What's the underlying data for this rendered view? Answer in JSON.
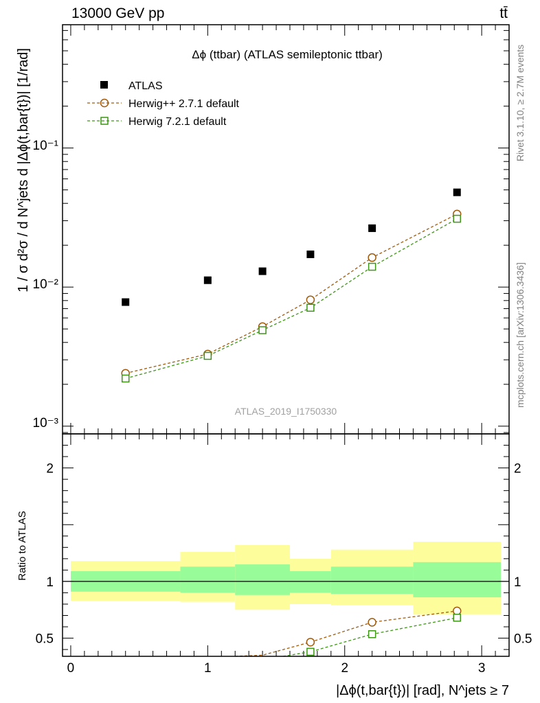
{
  "header": {
    "energy_label": "13000 GeV pp",
    "process_label": "tt̄"
  },
  "side_labels": {
    "rivet": "Rivet 3.1.10, ≥ 2.7M events",
    "mcplots": "mcplots.cern.ch [arXiv:1306.3436]"
  },
  "chart_data": [
    {
      "type": "scatter",
      "title": "Δϕ (ttbar) (ATLAS semileptonic ttbar)",
      "ylabel": "1 / σ d²σ / d N^jets d |Δϕ(t,bar{t})| [1/rad]",
      "yscale": "log",
      "ylim": [
        0.00088,
        0.77
      ],
      "y_ticks": [
        {
          "value": 0.001,
          "label": "10⁻³"
        },
        {
          "value": 0.01,
          "label": "10⁻²"
        },
        {
          "value": 0.1,
          "label": "10⁻¹"
        }
      ],
      "watermark": "ATLAS_2019_I1750330",
      "legend_position": "top-left",
      "x": [
        0.4,
        1.0,
        1.4,
        1.75,
        2.2,
        2.82
      ],
      "series": [
        {
          "name": "ATLAS",
          "marker": "filled-square",
          "color": "#000000",
          "values": [
            0.0078,
            0.0112,
            0.013,
            0.0172,
            0.0265,
            0.048
          ]
        },
        {
          "name": "Herwig++ 2.7.1 default",
          "marker": "open-circle",
          "color": "#a05a0a",
          "line": "dashed",
          "values": [
            0.0024,
            0.0033,
            0.0052,
            0.0081,
            0.0163,
            0.0335
          ]
        },
        {
          "name": "Herwig 7.2.1 default",
          "marker": "open-square",
          "color": "#3c9614",
          "line": "dashed",
          "values": [
            0.0022,
            0.0032,
            0.0049,
            0.0071,
            0.014,
            0.031
          ]
        }
      ]
    },
    {
      "type": "scatter",
      "xlabel": "|Δϕ(t,bar{t})| [rad], N^jets ≥ 7",
      "ylabel": "Ratio to ATLAS",
      "xlim": [
        -0.06,
        3.2
      ],
      "ylim": [
        0.34,
        2.3
      ],
      "x_ticks": [
        0,
        1,
        2,
        3
      ],
      "y_ticks": [
        0.5,
        1,
        2
      ],
      "reference": 1,
      "bands": [
        {
          "x0": 0.0,
          "x1": 0.8,
          "inner": [
            0.91,
            1.09
          ],
          "outer": [
            0.83,
            1.18
          ]
        },
        {
          "x0": 0.8,
          "x1": 1.2,
          "inner": [
            0.9,
            1.13
          ],
          "outer": [
            0.82,
            1.26
          ]
        },
        {
          "x0": 1.2,
          "x1": 1.6,
          "inner": [
            0.88,
            1.15
          ],
          "outer": [
            0.75,
            1.32
          ]
        },
        {
          "x0": 1.6,
          "x1": 1.9,
          "inner": [
            0.9,
            1.09
          ],
          "outer": [
            0.8,
            1.2
          ]
        },
        {
          "x0": 1.9,
          "x1": 2.5,
          "inner": [
            0.89,
            1.13
          ],
          "outer": [
            0.79,
            1.28
          ]
        },
        {
          "x0": 2.5,
          "x1": 3.14,
          "inner": [
            0.86,
            1.17
          ],
          "outer": [
            0.71,
            1.35
          ]
        }
      ],
      "series": [
        {
          "name": "Herwig++ 2.7.1 default",
          "color": "#a05a0a",
          "marker": "open-circle",
          "x": [
            1.4,
            1.75,
            2.2,
            2.82
          ],
          "values": [
            0.35,
            0.465,
            0.64,
            0.74
          ]
        },
        {
          "name": "Herwig 7.2.1 default",
          "color": "#3c9614",
          "marker": "open-square",
          "x": [
            1.75,
            2.2,
            2.82
          ],
          "values": [
            0.38,
            0.535,
            0.68
          ]
        }
      ]
    }
  ],
  "colors": {
    "inner_band": "#98fc98",
    "outer_band": "#fdfd9c"
  }
}
